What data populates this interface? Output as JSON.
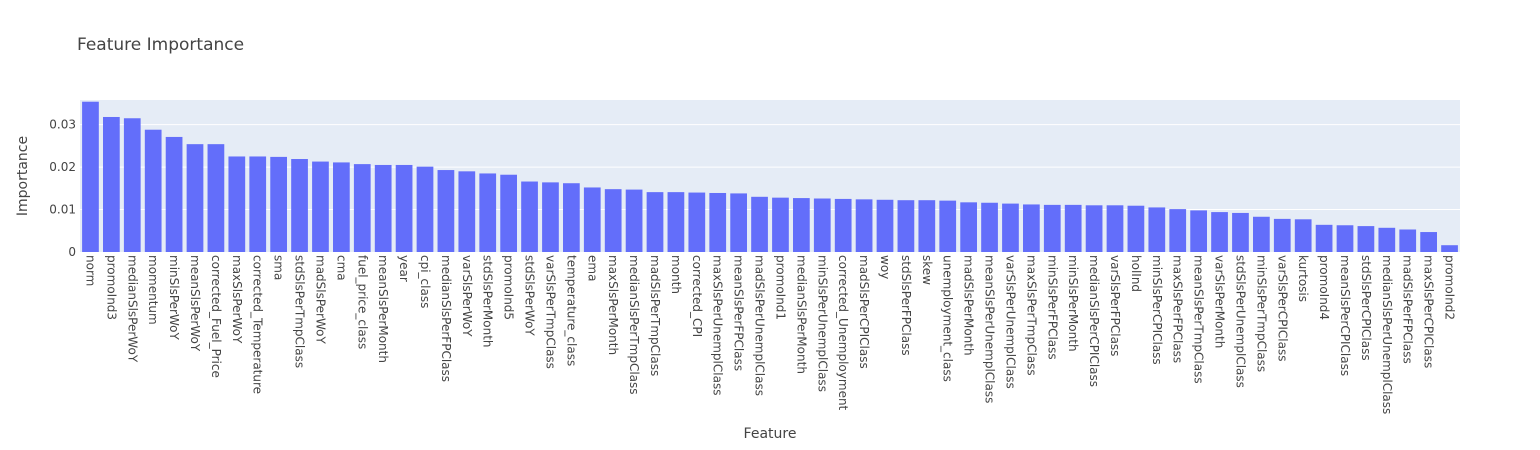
{
  "chart_data": {
    "type": "bar",
    "title": "Feature Importance",
    "xlabel": "Feature",
    "ylabel": "Importance",
    "ylim": [
      0,
      0.0358
    ],
    "yticks": [
      0,
      0.01,
      0.02,
      0.03
    ],
    "ytick_labels": [
      "0",
      "0.01",
      "0.02",
      "0.03"
    ],
    "grid": true,
    "colors": {
      "bar": "#636efa",
      "plot_bg": "#e5ecf6",
      "grid": "#ffffff"
    },
    "categories": [
      "norm",
      "promoInd3",
      "medianSlsPerWoY",
      "momentum",
      "minSlsPerWoY",
      "meanSlsPerWoY",
      "corrected_Fuel_Price",
      "maxSlsPerWoY",
      "corrected_Temperature",
      "sma",
      "stdSlsPerTmpClass",
      "madSlsPerWoY",
      "cma",
      "fuel_price_class",
      "meanSlsPerMonth",
      "year",
      "cpi_class",
      "medianSlsPerFPClass",
      "varSlsPerWoY",
      "stdSlsPerMonth",
      "promoInd5",
      "stdSlsPerWoY",
      "varSlsPerTmpClass",
      "temperature_class",
      "ema",
      "maxSlsPerMonth",
      "medianSlsPerTmpClass",
      "madSlsPerTmpClass",
      "month",
      "corrected_CPI",
      "maxSlsPerUnemplClass",
      "meanSlsPerFPClass",
      "madSlsPerUnemplClass",
      "promoInd1",
      "medianSlsPerMonth",
      "minSlsPerUnemplClass",
      "corrected_Unemployment",
      "madSlsPerCPIClass",
      "woy",
      "stdSlsPerFPClass",
      "skew",
      "unemployment_class",
      "madSlsPerMonth",
      "meanSlsPerUnemplClass",
      "varSlsPerUnemplClass",
      "maxSlsPerTmpClass",
      "minSlsPerFPClass",
      "minSlsPerMonth",
      "medianSlsPerCPIClass",
      "varSlsPerFPClass",
      "holInd",
      "minSlsPerCPIClass",
      "maxSlsPerFPClass",
      "meanSlsPerTmpClass",
      "varSlsPerMonth",
      "stdSlsPerUnemplClass",
      "minSlsPerTmpClass",
      "varSlsPerCPIClass",
      "kurtosis",
      "promoInd4",
      "meanSlsPerCPIClass",
      "stdSlsPerCPIClass",
      "medianSlsPerUnemplClass",
      "madSlsPerFPClass",
      "maxSlsPerCPIClass",
      "promoInd2"
    ],
    "values": [
      0.0354,
      0.0318,
      0.0315,
      0.0288,
      0.0271,
      0.0254,
      0.0254,
      0.0225,
      0.0225,
      0.0224,
      0.0219,
      0.0213,
      0.0211,
      0.0207,
      0.0205,
      0.0205,
      0.0201,
      0.0193,
      0.019,
      0.0185,
      0.0182,
      0.0166,
      0.0164,
      0.0162,
      0.0152,
      0.0148,
      0.0147,
      0.0141,
      0.0141,
      0.014,
      0.0139,
      0.0138,
      0.013,
      0.0128,
      0.0127,
      0.0126,
      0.0125,
      0.0124,
      0.0123,
      0.0122,
      0.0122,
      0.0121,
      0.0117,
      0.0116,
      0.0114,
      0.0112,
      0.0111,
      0.0111,
      0.011,
      0.011,
      0.0109,
      0.0105,
      0.0101,
      0.0098,
      0.0094,
      0.0092,
      0.0083,
      0.0078,
      0.0077,
      0.0064,
      0.0063,
      0.0061,
      0.0057,
      0.0053,
      0.0047,
      0.0016
    ]
  }
}
